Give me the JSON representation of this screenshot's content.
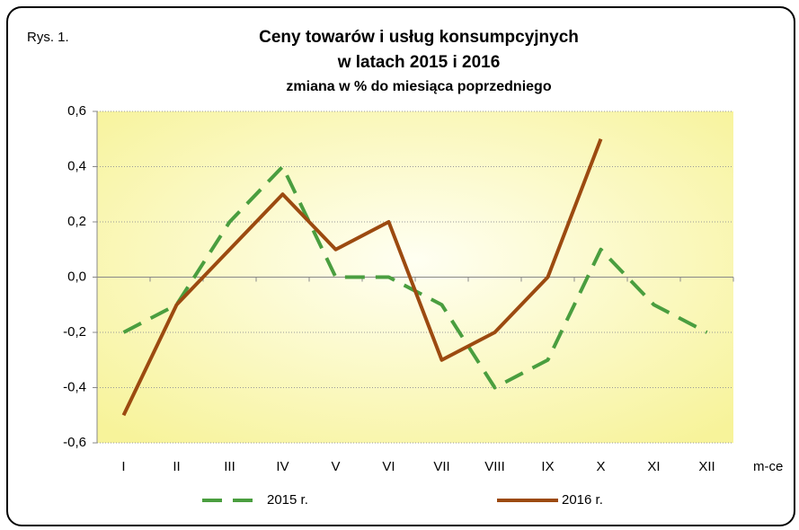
{
  "chart_data": {
    "type": "line",
    "figure_label": "Rys. 1.",
    "title_lines": [
      "Ceny towarów i usług konsumpcyjnych",
      "w latach 2015 i 2016"
    ],
    "subtitle": "zmiana w % do miesiąca poprzedniego",
    "x_label": "m-ce",
    "categories": [
      "I",
      "II",
      "III",
      "IV",
      "V",
      "VI",
      "VII",
      "VIII",
      "IX",
      "X",
      "XI",
      "XII"
    ],
    "series": [
      {
        "name": "2015 r.",
        "color": "#4a9e3f",
        "dashed": true,
        "values": [
          -0.2,
          -0.1,
          0.2,
          0.4,
          0.0,
          0.0,
          -0.1,
          -0.4,
          -0.3,
          0.1,
          -0.1,
          -0.2
        ]
      },
      {
        "name": "2016 r.",
        "color": "#9c4a10",
        "dashed": false,
        "values": [
          -0.5,
          -0.1,
          0.1,
          0.3,
          0.1,
          0.2,
          -0.3,
          -0.2,
          0.0,
          0.5,
          null,
          null
        ]
      }
    ],
    "ylim": [
      -0.6,
      0.6
    ],
    "yticks": [
      {
        "value": -0.6,
        "label": "-0,6"
      },
      {
        "value": -0.4,
        "label": "-0,4"
      },
      {
        "value": -0.2,
        "label": "-0,2"
      },
      {
        "value": 0,
        "label": "0,0"
      },
      {
        "value": 0.2,
        "label": "0,2"
      },
      {
        "value": 0.4,
        "label": "0,4"
      },
      {
        "value": 0.6,
        "label": "0,6"
      }
    ],
    "grid": true
  }
}
